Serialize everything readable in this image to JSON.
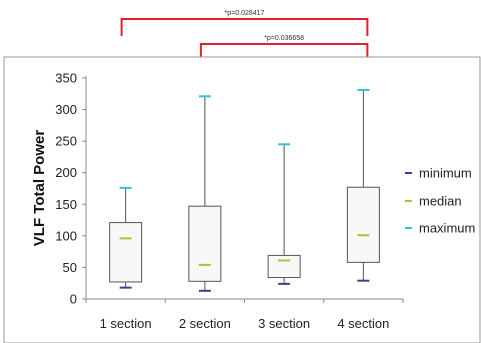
{
  "chart_data": {
    "type": "box",
    "title": "",
    "xlabel": "",
    "ylabel": "VLF Total Power",
    "ylim": [
      0,
      350
    ],
    "yticks": [
      0,
      50,
      100,
      150,
      200,
      250,
      300,
      350
    ],
    "grid": false,
    "legend_position": "right",
    "categories": [
      "1 section",
      "2 section",
      "3 section",
      "4 section"
    ],
    "boxes": [
      {
        "min": 18,
        "q1": 27,
        "median": 96,
        "q3": 121,
        "max": 176
      },
      {
        "min": 13,
        "q1": 28,
        "median": 54,
        "q3": 147,
        "max": 321
      },
      {
        "min": 24,
        "q1": 34,
        "median": 61,
        "q3": 69,
        "max": 245
      },
      {
        "min": 29,
        "q1": 58,
        "median": 101,
        "q3": 177,
        "max": 331
      }
    ],
    "series": [
      {
        "name": "minimum",
        "color": "#3b3f8c"
      },
      {
        "name": "median",
        "color": "#9acd32"
      },
      {
        "name": "maximum",
        "color": "#33c3d6"
      }
    ],
    "annotations": [
      {
        "text": "*p=0.028417",
        "from": 0,
        "to": 3,
        "color": "#e0202a"
      },
      {
        "text": "*p=0.036658",
        "from": 1,
        "to": 3,
        "color": "#e0202a"
      }
    ]
  }
}
